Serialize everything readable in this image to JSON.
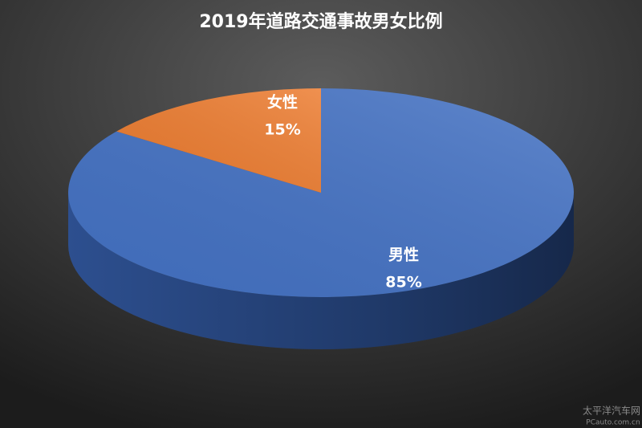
{
  "chart_data": {
    "type": "pie3d",
    "title": "2019年道路交通事故男女比例",
    "categories": [
      "男性",
      "女性"
    ],
    "values": [
      85,
      15
    ],
    "value_labels": [
      "85%",
      "15%"
    ],
    "colors": [
      "#4472c4",
      "#ed7d31"
    ]
  },
  "watermark": [
    "太平洋汽车网",
    "PCauto.com.cn"
  ]
}
